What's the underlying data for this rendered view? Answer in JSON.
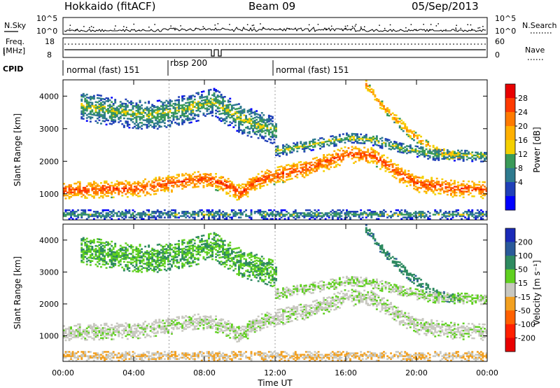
{
  "header": {
    "station": "Hokkaido (fitACF)",
    "beam": "Beam 09",
    "date": "05/Sep/2013"
  },
  "panels": {
    "nsky": {
      "label": "N.Sky",
      "ticks": [
        "10^5",
        "10^0"
      ],
      "right_label": "N.Search",
      "right_ticks": [
        "10^5",
        "10^0"
      ]
    },
    "freq": {
      "label_line1": "Freq.",
      "label_line2": "[MHz]",
      "ticks": [
        "18",
        "8"
      ],
      "right_label": "Nave",
      "right_ticks": [
        "60",
        "0"
      ]
    },
    "cpid": {
      "label": "CPID",
      "modes": [
        {
          "name": "normal (fast) 151",
          "start_h": 0,
          "end_h": 6
        },
        {
          "name": "rbsp 200",
          "start_h": 6,
          "end_h": 12
        },
        {
          "name": "normal (fast) 151",
          "start_h": 12,
          "end_h": 24
        }
      ]
    }
  },
  "x_axis": {
    "label": "Time UT",
    "ticks": [
      "00:00",
      "04:00",
      "08:00",
      "12:00",
      "16:00",
      "20:00",
      "00:00"
    ]
  },
  "power_colorbar": {
    "label": "Power [dB]",
    "ticks": [
      "28",
      "24",
      "20",
      "16",
      "12",
      "8",
      "4"
    ],
    "colors": [
      "#e80000",
      "#ff3a00",
      "#ff7a00",
      "#ffb000",
      "#f4d000",
      "#3a9a58",
      "#2e7a8e",
      "#2040b8",
      "#0000ff"
    ]
  },
  "velocity_colorbar": {
    "label": "Velocity [m s⁻¹]",
    "ticks": [
      "200",
      "100",
      "50",
      "15",
      "-15",
      "-50",
      "-100",
      "-200"
    ],
    "colors": [
      "#1a2ab8",
      "#2a5a9a",
      "#2e8a60",
      "#60d020",
      "#c8c8c0",
      "#f2a020",
      "#ff6000",
      "#ff2000",
      "#e80000"
    ]
  },
  "chart_data": {
    "type": "heatmap",
    "title": "Hokkaido (fitACF)  Beam 09  05/Sep/2013",
    "x_unit": "hours UT",
    "xlim": [
      0,
      24
    ],
    "y_label": "Slant Range [km]",
    "ylim": [
      200,
      4500
    ],
    "y_ticks": [
      1000,
      2000,
      3000,
      4000
    ],
    "scatter_bands": [
      {
        "name": "main_band",
        "center_km": [
          [
            0,
            1100
          ],
          [
            4,
            1150
          ],
          [
            6,
            1300
          ],
          [
            8,
            1450
          ],
          [
            9,
            1300
          ],
          [
            10,
            1000
          ],
          [
            11,
            1400
          ],
          [
            12,
            1550
          ],
          [
            14,
            1800
          ],
          [
            16,
            2200
          ],
          [
            17.5,
            2150
          ],
          [
            19,
            1600
          ],
          [
            20,
            1300
          ],
          [
            22,
            1150
          ],
          [
            24,
            1100
          ]
        ],
        "halfwidth_km": 260,
        "power_db": 26,
        "velocity": -10
      },
      {
        "name": "upper_echoes",
        "center_km": [
          [
            1,
            3700
          ],
          [
            3,
            3500
          ],
          [
            5,
            3400
          ],
          [
            7,
            3600
          ],
          [
            8.5,
            3800
          ],
          [
            10,
            3300
          ],
          [
            12,
            2900
          ]
        ],
        "halfwidth_km": 450,
        "power_db": 14,
        "velocity": 30
      },
      {
        "name": "descending_streak",
        "center_km": [
          [
            17,
            4400
          ],
          [
            18,
            3700
          ],
          [
            19.5,
            2900
          ],
          [
            21,
            2300
          ],
          [
            22.5,
            2100
          ]
        ],
        "halfwidth_km": 150,
        "power_db": 22,
        "velocity": 60
      },
      {
        "name": "mid_band",
        "center_km": [
          [
            12,
            2300
          ],
          [
            14,
            2500
          ],
          [
            16,
            2700
          ],
          [
            17.5,
            2650
          ],
          [
            19,
            2400
          ],
          [
            21,
            2200
          ],
          [
            24,
            2150
          ]
        ],
        "halfwidth_km": 180,
        "power_db": 14,
        "velocity": 0
      },
      {
        "name": "near_range_noise",
        "center_km": [
          [
            0,
            350
          ],
          [
            6,
            350
          ],
          [
            12,
            350
          ],
          [
            18,
            350
          ],
          [
            24,
            350
          ]
        ],
        "halfwidth_km": 140,
        "power_db": 12,
        "velocity": -30
      }
    ]
  }
}
